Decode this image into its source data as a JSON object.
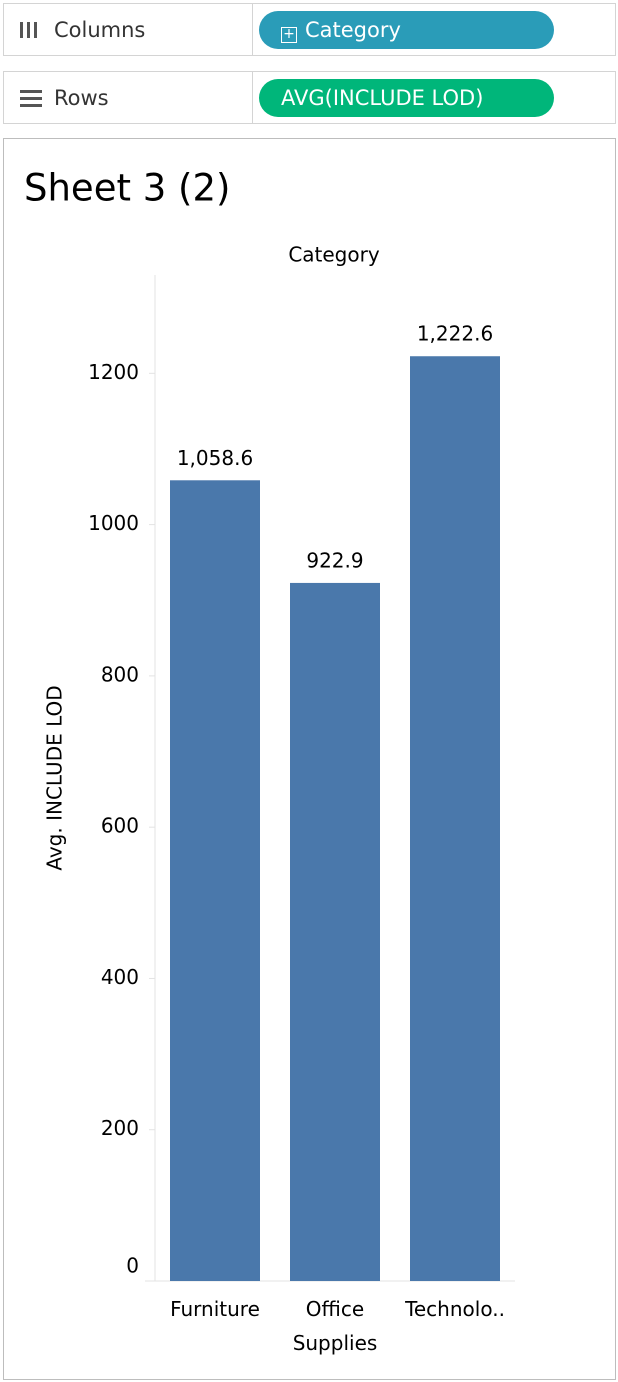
{
  "shelves": {
    "columns": {
      "label": "Columns",
      "pill": "Category"
    },
    "rows": {
      "label": "Rows",
      "pill": "AVG(INCLUDE LOD)"
    }
  },
  "chart_data": {
    "type": "bar",
    "title": "Sheet 3 (2)",
    "x_header": "Category",
    "y_label": "Avg. INCLUDE LOD",
    "categories": [
      "Furniture",
      "Office Supplies",
      "Technolo.."
    ],
    "values": [
      1058.6,
      922.9,
      1222.6
    ],
    "value_labels": [
      "1,058.6",
      "922.9",
      "1,222.6"
    ],
    "color": "#4a78ab",
    "ylim": [
      0,
      1330
    ],
    "yticks": [
      0,
      200,
      400,
      600,
      800,
      1000,
      1200
    ],
    "grid": false
  }
}
